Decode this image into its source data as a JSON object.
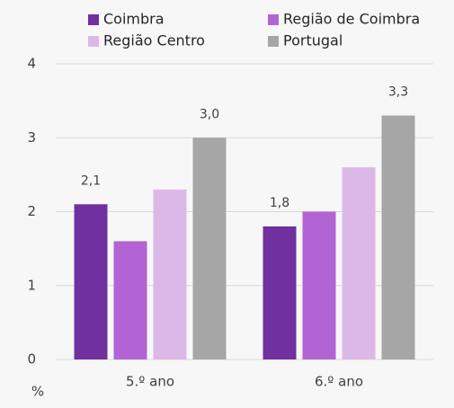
{
  "chart_data": {
    "type": "bar",
    "categories": [
      "5.º ano",
      "6.º ano"
    ],
    "series": [
      {
        "name": "Coimbra",
        "color": "#7030a0",
        "values": [
          2.1,
          1.8
        ],
        "value_labels": [
          "2,1",
          "1,8"
        ]
      },
      {
        "name": "Região de Coimbra",
        "color": "#b264d4",
        "values": [
          1.6,
          2.0
        ]
      },
      {
        "name": "Região Centro",
        "color": "#dcb8e8",
        "values": [
          2.3,
          2.6
        ]
      },
      {
        "name": "Portugal",
        "color": "#a6a6a6",
        "values": [
          3.0,
          3.3
        ],
        "value_labels": [
          "3,0",
          "3,3"
        ]
      }
    ],
    "ylim": [
      0,
      4
    ],
    "yticks": [
      0,
      1,
      2,
      3,
      4
    ],
    "grid": true,
    "y_label": "%",
    "legend": "top"
  }
}
